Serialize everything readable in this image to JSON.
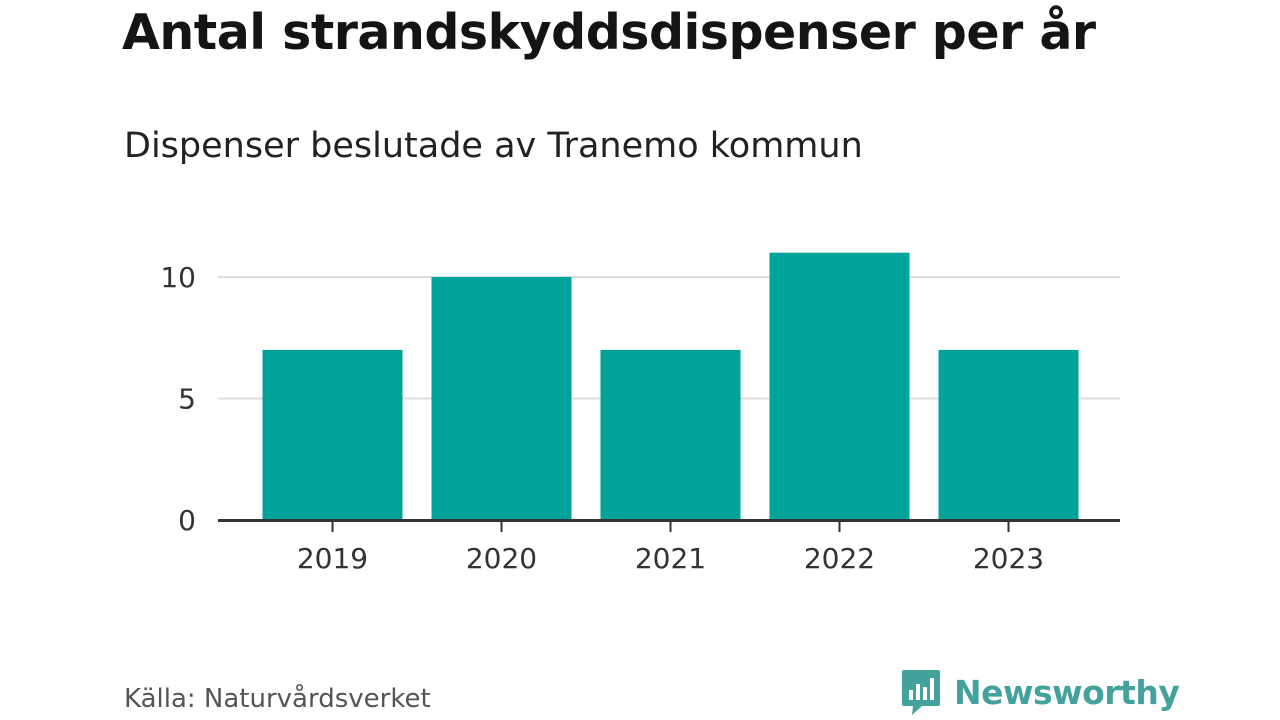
{
  "chart_data": {
    "type": "bar",
    "title": "Antal strandskyddsdispenser per år",
    "subtitle": "Dispenser beslutade av Tranemo kommun",
    "categories": [
      "2019",
      "2020",
      "2021",
      "2022",
      "2023"
    ],
    "values": [
      7,
      10,
      7,
      11,
      7
    ],
    "yticks": [
      "0",
      "5",
      "10"
    ],
    "ylim": [
      0,
      12
    ],
    "xlabel": "",
    "ylabel": "",
    "grid": true,
    "bar_color": "#00a39a"
  },
  "source": "Källa: Naturvårdsverket",
  "brand": {
    "name": "Newsworthy",
    "color": "#43a39c",
    "icon": "newsworthy-logo-icon"
  }
}
